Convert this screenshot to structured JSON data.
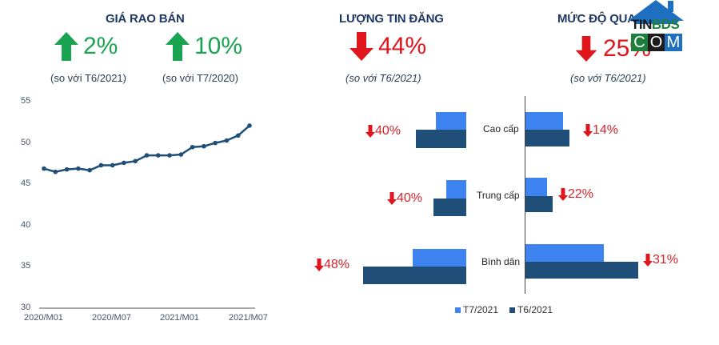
{
  "colors": {
    "green": "#1aa350",
    "red": "#e0161c",
    "header": "#1f3864",
    "line": "#1f4e79",
    "bar_t7": "#3d84f0",
    "bar_t6": "#1f4e79"
  },
  "sections": {
    "price": {
      "title": "GIÁ RAO BÁN",
      "stats": [
        {
          "icon": "arrow-up-icon",
          "value": "2%",
          "note": "(so với T6/2021)"
        },
        {
          "icon": "arrow-up-icon",
          "value": "10%",
          "note": "(so với T7/2020)"
        }
      ]
    },
    "listings": {
      "title": "LƯỢNG TIN ĐĂNG",
      "stat": {
        "icon": "arrow-down-icon",
        "value": "44%",
        "note": "(so với T6/2021)"
      }
    },
    "interest": {
      "title": "MỨC ĐỘ QUAN",
      "stat": {
        "icon": "arrow-down-icon",
        "value": "25%",
        "note": "(so với T6/2021)"
      }
    }
  },
  "logo": {
    "top": "TIN",
    "top2": "BDS",
    "bottom": [
      "C",
      "O",
      "M"
    ]
  },
  "chart_data": [
    {
      "type": "line",
      "title": "GIÁ RAO BÁN",
      "xlabel": "",
      "ylabel": "",
      "ylim": [
        30,
        55
      ],
      "yticks": [
        30,
        35,
        40,
        45,
        50,
        55
      ],
      "xtick_labels": [
        "2020/M01",
        "2020/M07",
        "2021/M01",
        "2021/M07"
      ],
      "x": [
        "2020/M01",
        "2020/M02",
        "2020/M03",
        "2020/M04",
        "2020/M05",
        "2020/M06",
        "2020/M07",
        "2020/M08",
        "2020/M09",
        "2020/M10",
        "2020/M11",
        "2020/M12",
        "2021/M01",
        "2021/M02",
        "2021/M03",
        "2021/M04",
        "2021/M05",
        "2021/M06",
        "2021/M07"
      ],
      "values": [
        46.9,
        46.5,
        46.8,
        46.9,
        46.7,
        47.3,
        47.3,
        47.6,
        47.8,
        48.5,
        48.5,
        48.5,
        48.6,
        49.5,
        49.6,
        50.0,
        50.3,
        50.9,
        52.1
      ],
      "grid": false
    },
    {
      "type": "bar",
      "orientation": "horizontal",
      "title": "LƯỢNG TIN ĐĂNG",
      "categories": [
        "Cao cấp",
        "Trung cấp",
        "Bình dân"
      ],
      "series": [
        {
          "name": "T7/2021",
          "values": [
            38,
            25,
            67
          ]
        },
        {
          "name": "T6/2021",
          "values": [
            63,
            41,
            129
          ]
        }
      ],
      "annotations": [
        "40%",
        "40%",
        "48%"
      ],
      "annotation_direction": "down"
    },
    {
      "type": "bar",
      "orientation": "horizontal",
      "title": "MỨC ĐỘ QUAN TÂM",
      "categories": [
        "Cao cấp",
        "Trung cấp",
        "Bình dân"
      ],
      "series": [
        {
          "name": "T7/2021",
          "values": [
            47,
            27,
            98
          ]
        },
        {
          "name": "T6/2021",
          "values": [
            55,
            34,
            141
          ]
        }
      ],
      "annotations": [
        "14%",
        "22%",
        "31%"
      ],
      "annotation_direction": "down"
    }
  ],
  "legend": [
    {
      "label": "T7/2021",
      "color": "#3d84f0"
    },
    {
      "label": "T6/2021",
      "color": "#1f4e79"
    }
  ]
}
